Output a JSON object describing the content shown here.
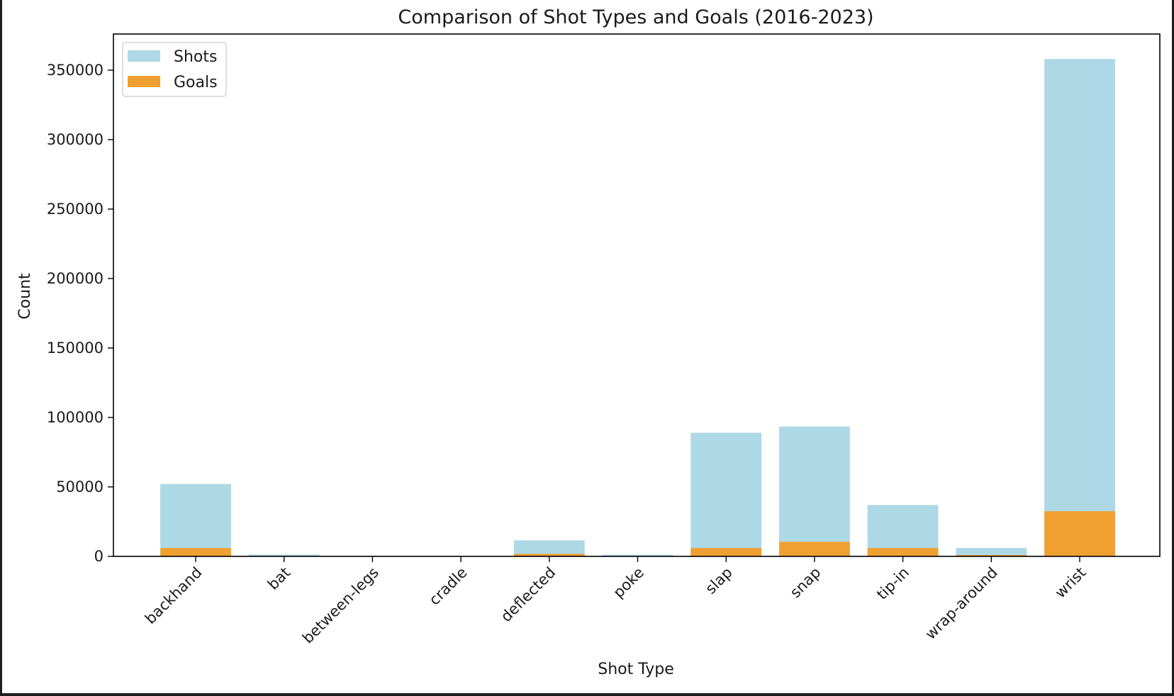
{
  "chart_data": {
    "type": "bar",
    "title": "Comparison of Shot Types and Goals (2016-2023)",
    "xlabel": "Shot Type",
    "ylabel": "Count",
    "ylim": [
      0,
      376000
    ],
    "yticks": [
      0,
      50000,
      100000,
      150000,
      200000,
      250000,
      300000,
      350000
    ],
    "ytick_labels": [
      "0",
      "50000",
      "100000",
      "150000",
      "200000",
      "250000",
      "300000",
      "350000"
    ],
    "categories": [
      "backhand",
      "bat",
      "between-legs",
      "cradle",
      "deflected",
      "poke",
      "slap",
      "snap",
      "tip-in",
      "wrap-around",
      "wrist"
    ],
    "series": [
      {
        "name": "Shots",
        "color": "#add8e6",
        "values": [
          52000,
          1300,
          100,
          50,
          11500,
          1200,
          89000,
          93500,
          37000,
          6000,
          358000
        ]
      },
      {
        "name": "Goals",
        "color": "#f0a030",
        "values": [
          6000,
          100,
          20,
          5,
          1800,
          80,
          6000,
          10500,
          6000,
          1000,
          32500
        ]
      }
    ],
    "legend_position": "top-left",
    "grid": false
  }
}
